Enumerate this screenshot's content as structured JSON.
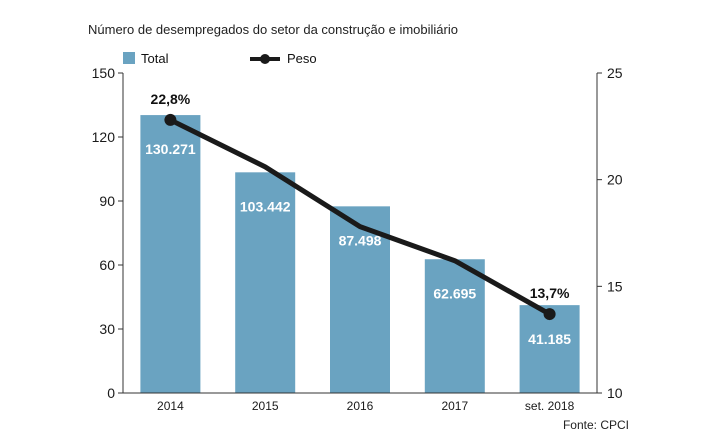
{
  "title": "Número de desempregados do setor da construção e imobiliário",
  "source": "Fonte: CPCI",
  "chart_data": {
    "type": "bar",
    "categories": [
      "2014",
      "2015",
      "2016",
      "2017",
      "set. 2018"
    ],
    "series": [
      {
        "name": "Total",
        "axis": "left",
        "values": [
          130.271,
          103.442,
          87.498,
          62.695,
          41.185
        ],
        "labels": [
          "130.271",
          "103.442",
          "87.498",
          "62.695",
          "41.185"
        ],
        "color": "#6aa3c1"
      },
      {
        "name": "Peso",
        "axis": "right",
        "type": "line",
        "values": [
          22.8,
          20.6,
          17.8,
          16.2,
          13.7
        ],
        "point_labels": [
          "22,8%",
          "",
          "",
          "",
          "13,7%"
        ],
        "color": "#1a1a1a"
      }
    ],
    "y_left": {
      "ticks": [
        "0",
        "30",
        "60",
        "90",
        "120",
        "150"
      ],
      "ylim": [
        0,
        150
      ]
    },
    "y_right": {
      "ticks": [
        "10",
        "15",
        "20",
        "25"
      ],
      "ylim": [
        10,
        25
      ]
    },
    "legend": {
      "position": "top-left",
      "items": [
        "Total",
        "Peso"
      ]
    }
  }
}
